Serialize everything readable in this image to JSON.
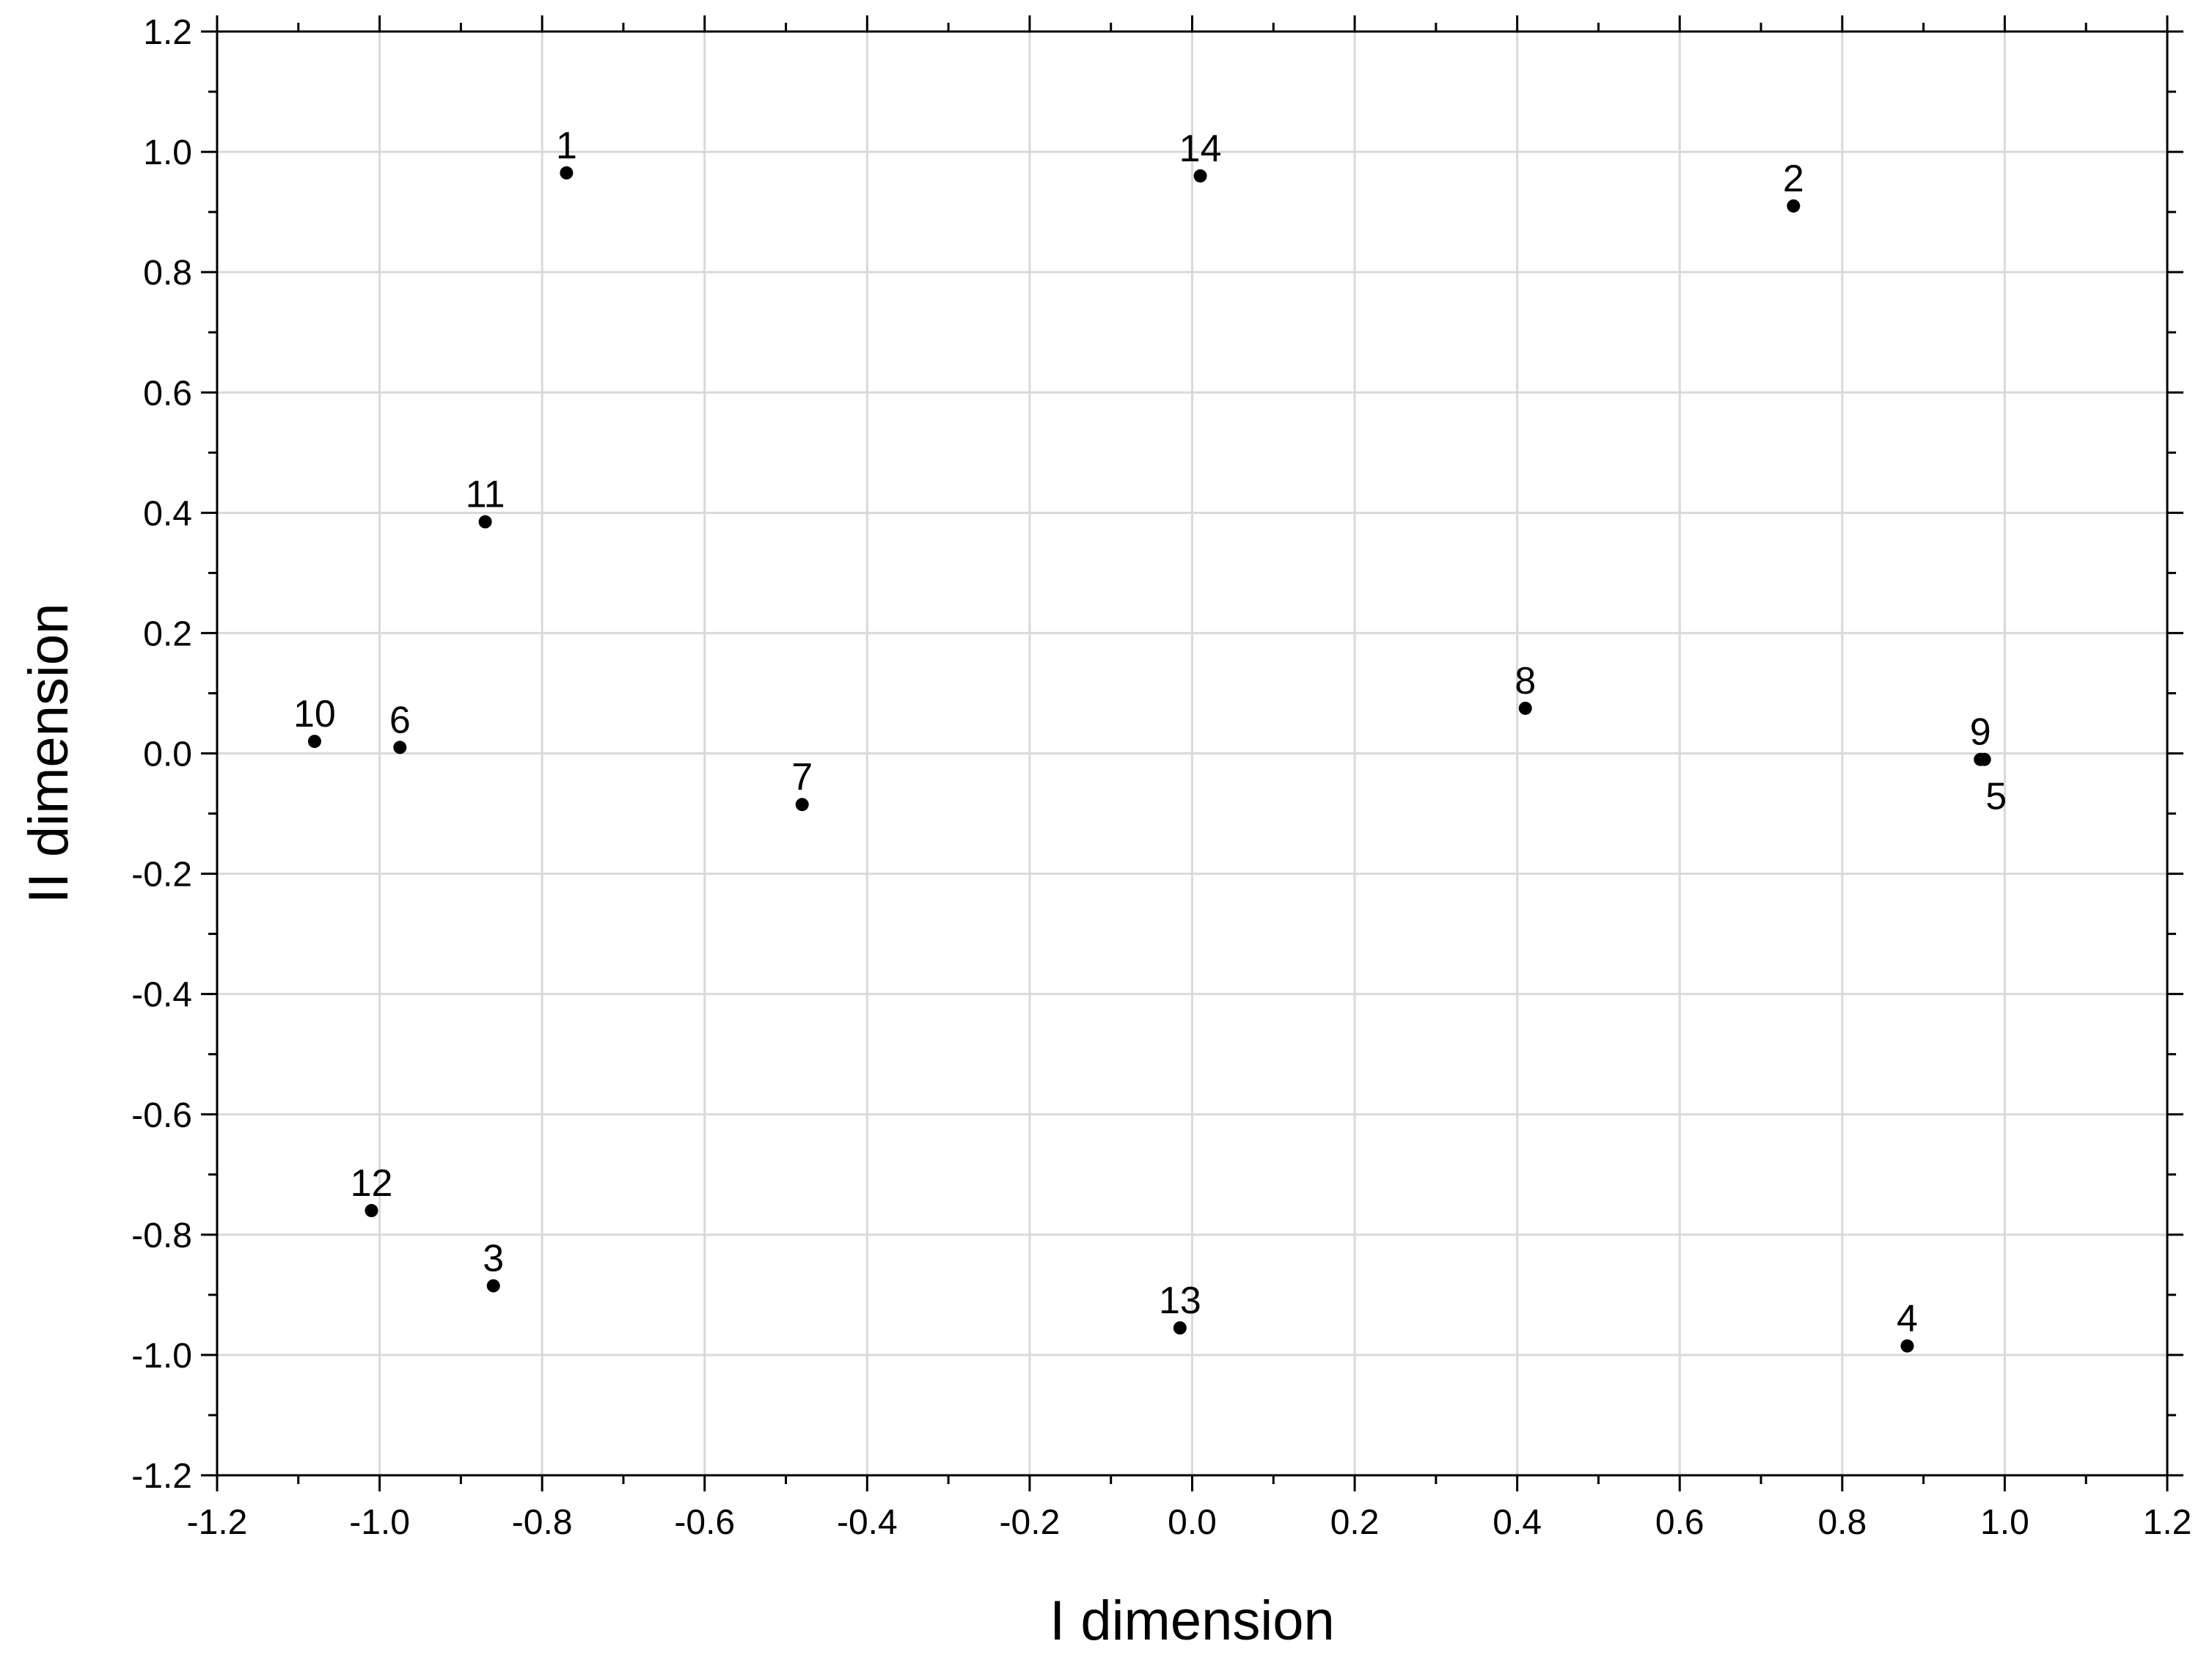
{
  "chart_data": {
    "type": "scatter",
    "xlabel": "I dimension",
    "ylabel": "II dimension",
    "xlim": [
      -1.2,
      1.2
    ],
    "ylim": [
      -1.2,
      1.2
    ],
    "grid": true,
    "x_ticks": [
      "-1.2",
      "-1.0",
      "-0.8",
      "-0.6",
      "-0.4",
      "-0.2",
      "0.0",
      "0.2",
      "0.4",
      "0.6",
      "0.8",
      "1.0",
      "1.2"
    ],
    "y_ticks": [
      "-1.2",
      "-1.0",
      "-0.8",
      "-0.6",
      "-0.4",
      "-0.2",
      "0.0",
      "0.2",
      "0.4",
      "0.6",
      "0.8",
      "1.0",
      "1.2"
    ],
    "points": [
      {
        "label": "1",
        "x": -0.77,
        "y": 0.965
      },
      {
        "label": "2",
        "x": 0.74,
        "y": 0.91
      },
      {
        "label": "3",
        "x": -0.86,
        "y": -0.885
      },
      {
        "label": "4",
        "x": 0.88,
        "y": -0.985
      },
      {
        "label": "5",
        "x": 0.975,
        "y": -0.01
      },
      {
        "label": "6",
        "x": -0.975,
        "y": 0.01
      },
      {
        "label": "7",
        "x": -0.48,
        "y": -0.085
      },
      {
        "label": "8",
        "x": 0.41,
        "y": 0.075
      },
      {
        "label": "9",
        "x": 0.97,
        "y": -0.01
      },
      {
        "label": "10",
        "x": -1.08,
        "y": 0.02
      },
      {
        "label": "11",
        "x": -0.87,
        "y": 0.385
      },
      {
        "label": "12",
        "x": -1.01,
        "y": -0.76
      },
      {
        "label": "13",
        "x": -0.015,
        "y": -0.955
      },
      {
        "label": "14",
        "x": 0.01,
        "y": 0.96
      }
    ]
  }
}
